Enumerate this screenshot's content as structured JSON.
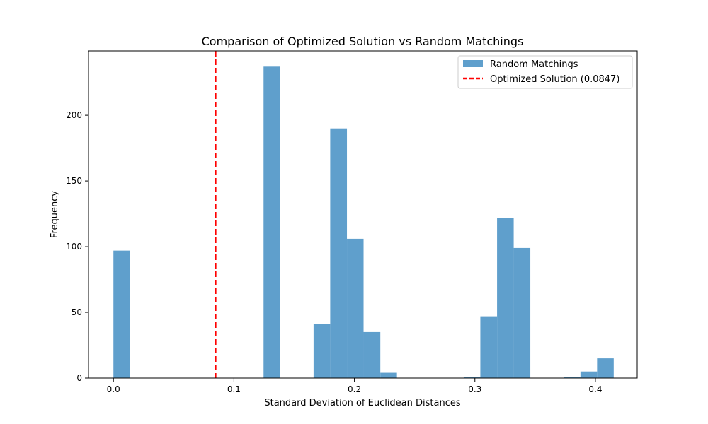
{
  "colors": {
    "bar": "#5f9fcc",
    "line": "#ff0000",
    "axis": "#000000",
    "background": "#ffffff"
  },
  "chart_data": {
    "type": "bar",
    "title": "Comparison of Optimized Solution vs Random Matchings",
    "xlabel": "Standard Deviation of Euclidean Distances",
    "ylabel": "Frequency",
    "xlim": [
      -0.0207,
      0.4347
    ],
    "ylim": [
      0,
      249
    ],
    "xticks": [
      0.0,
      0.1,
      0.2,
      0.3,
      0.4
    ],
    "xtick_labels": [
      "0.0",
      "0.1",
      "0.2",
      "0.3",
      "0.4"
    ],
    "yticks": [
      0,
      50,
      100,
      150,
      200
    ],
    "ytick_labels": [
      "0",
      "50",
      "100",
      "150",
      "200"
    ],
    "grid": false,
    "legend_position": "top-right",
    "bin_width": 0.01384,
    "series": [
      {
        "name": "Random Matchings",
        "kind": "histogram",
        "bins": [
          {
            "x0": 0.0,
            "x1": 0.0138,
            "count": 97
          },
          {
            "x0": 0.1246,
            "x1": 0.1384,
            "count": 237
          },
          {
            "x0": 0.1661,
            "x1": 0.1799,
            "count": 41
          },
          {
            "x0": 0.1799,
            "x1": 0.1938,
            "count": 190
          },
          {
            "x0": 0.1938,
            "x1": 0.2076,
            "count": 106
          },
          {
            "x0": 0.2076,
            "x1": 0.2215,
            "count": 35
          },
          {
            "x0": 0.2215,
            "x1": 0.2353,
            "count": 4
          },
          {
            "x0": 0.2907,
            "x1": 0.3045,
            "count": 1
          },
          {
            "x0": 0.3045,
            "x1": 0.3184,
            "count": 47
          },
          {
            "x0": 0.3184,
            "x1": 0.3322,
            "count": 122
          },
          {
            "x0": 0.3322,
            "x1": 0.346,
            "count": 99
          },
          {
            "x0": 0.3737,
            "x1": 0.3876,
            "count": 1
          },
          {
            "x0": 0.3876,
            "x1": 0.4014,
            "count": 5
          },
          {
            "x0": 0.4014,
            "x1": 0.4152,
            "count": 15
          }
        ]
      },
      {
        "name": "Optimized Solution (0.0847)",
        "kind": "vline",
        "x": 0.0847,
        "style": "dashed"
      }
    ]
  }
}
